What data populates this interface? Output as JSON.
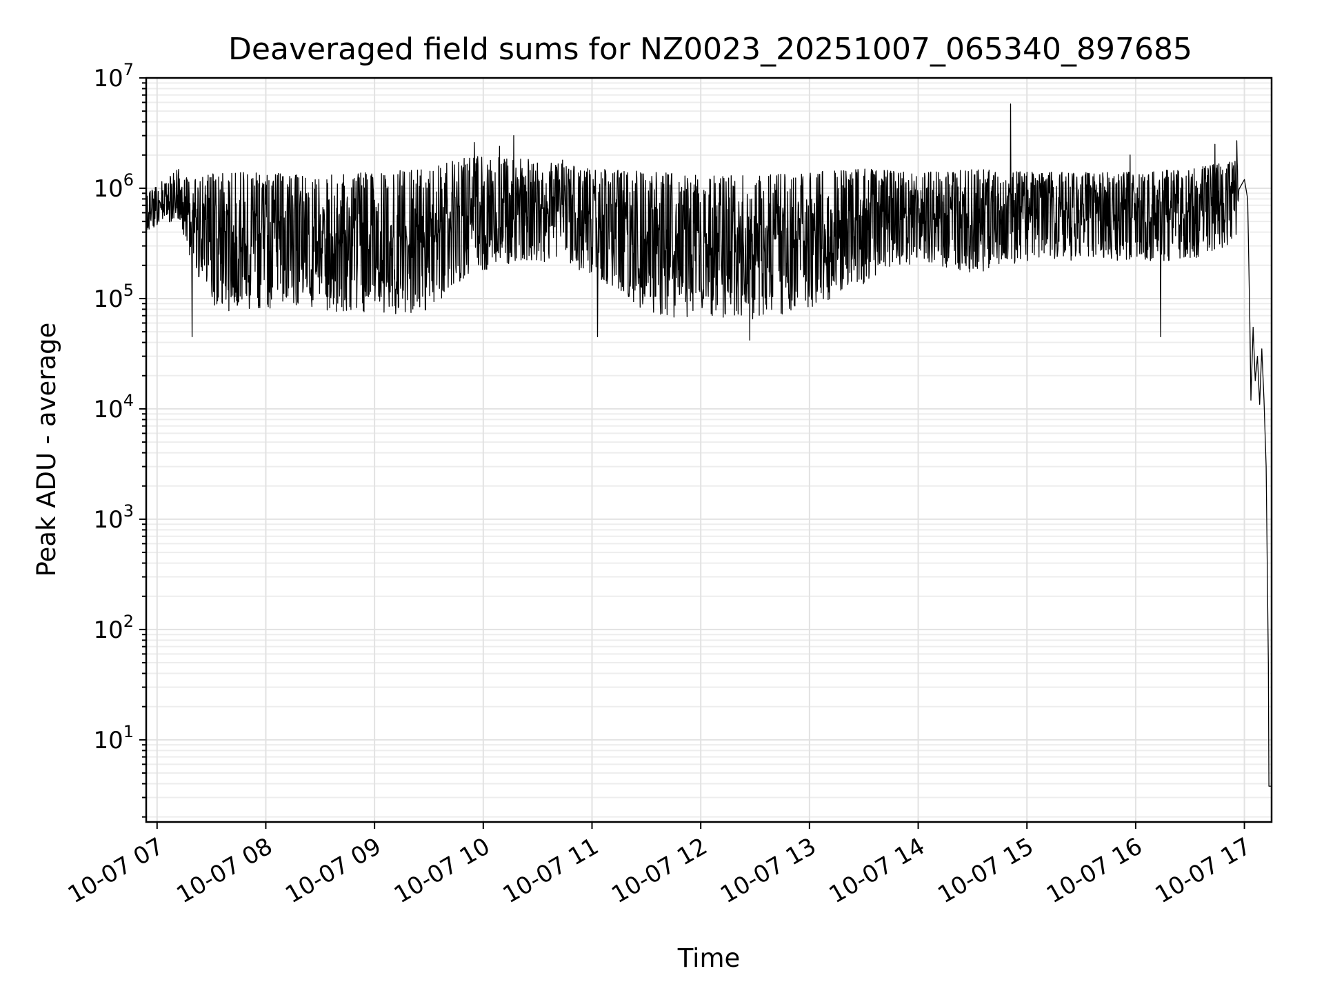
{
  "chart_data": {
    "type": "line",
    "title": "Deaveraged field sums for NZ0023_20251007_065340_897685",
    "xlabel": "Time",
    "ylabel": "Peak ADU - average",
    "yscale": "log",
    "ylim": [
      1.8,
      10000000
    ],
    "xlim_hours": [
      6.9,
      17.25
    ],
    "grid": true,
    "x_ticks": [
      {
        "hour": 7,
        "label": "10-07 07"
      },
      {
        "hour": 8,
        "label": "10-07 08"
      },
      {
        "hour": 9,
        "label": "10-07 09"
      },
      {
        "hour": 10,
        "label": "10-07 10"
      },
      {
        "hour": 11,
        "label": "10-07 11"
      },
      {
        "hour": 12,
        "label": "10-07 12"
      },
      {
        "hour": 13,
        "label": "10-07 13"
      },
      {
        "hour": 14,
        "label": "10-07 14"
      },
      {
        "hour": 15,
        "label": "10-07 15"
      },
      {
        "hour": 16,
        "label": "10-07 16"
      },
      {
        "hour": 17,
        "label": "10-07 17"
      }
    ],
    "y_ticks": [
      {
        "value": 10,
        "base": "10",
        "exp": "1"
      },
      {
        "value": 100,
        "base": "10",
        "exp": "2"
      },
      {
        "value": 1000,
        "base": "10",
        "exp": "3"
      },
      {
        "value": 10000,
        "base": "10",
        "exp": "4"
      },
      {
        "value": 100000,
        "base": "10",
        "exp": "5"
      },
      {
        "value": 1000000,
        "base": "10",
        "exp": "6"
      },
      {
        "value": 10000000,
        "base": "10",
        "exp": "7"
      }
    ],
    "series": [
      {
        "name": "Peak ADU - average",
        "color": "#000000",
        "envelope": [
          {
            "t": 6.9,
            "lo": 400000,
            "hi": 900000
          },
          {
            "t": 7.2,
            "lo": 500000,
            "hi": 1500000
          },
          {
            "t": 7.35,
            "lo": 150000,
            "hi": 1200000
          },
          {
            "t": 7.55,
            "lo": 65000,
            "hi": 1400000
          },
          {
            "t": 8.0,
            "lo": 70000,
            "hi": 1400000
          },
          {
            "t": 8.5,
            "lo": 65000,
            "hi": 1300000
          },
          {
            "t": 9.0,
            "lo": 60000,
            "hi": 1400000
          },
          {
            "t": 9.5,
            "lo": 65000,
            "hi": 1500000
          },
          {
            "t": 9.9,
            "lo": 150000,
            "hi": 2000000
          },
          {
            "t": 10.5,
            "lo": 200000,
            "hi": 1800000
          },
          {
            "t": 11.0,
            "lo": 150000,
            "hi": 1500000
          },
          {
            "t": 11.6,
            "lo": 55000,
            "hi": 1400000
          },
          {
            "t": 12.0,
            "lo": 60000,
            "hi": 1300000
          },
          {
            "t": 12.5,
            "lo": 55000,
            "hi": 1300000
          },
          {
            "t": 13.0,
            "lo": 70000,
            "hi": 1400000
          },
          {
            "t": 13.5,
            "lo": 120000,
            "hi": 1500000
          },
          {
            "t": 14.0,
            "lo": 200000,
            "hi": 1400000
          },
          {
            "t": 14.5,
            "lo": 150000,
            "hi": 1500000
          },
          {
            "t": 15.0,
            "lo": 200000,
            "hi": 1400000
          },
          {
            "t": 15.5,
            "lo": 200000,
            "hi": 1400000
          },
          {
            "t": 16.0,
            "lo": 200000,
            "hi": 1400000
          },
          {
            "t": 16.5,
            "lo": 200000,
            "hi": 1500000
          },
          {
            "t": 16.95,
            "lo": 300000,
            "hi": 1800000
          }
        ],
        "spikes": [
          {
            "t": 7.32,
            "v": 45000
          },
          {
            "t": 9.92,
            "v": 2600000
          },
          {
            "t": 10.28,
            "v": 3000000
          },
          {
            "t": 10.15,
            "v": 2400000
          },
          {
            "t": 10.73,
            "v": 1800000
          },
          {
            "t": 11.05,
            "v": 45000
          },
          {
            "t": 12.45,
            "v": 42000
          },
          {
            "t": 14.85,
            "v": 5800000
          },
          {
            "t": 15.95,
            "v": 2000000
          },
          {
            "t": 16.23,
            "v": 45000
          },
          {
            "t": 16.73,
            "v": 2500000
          },
          {
            "t": 16.93,
            "v": 2700000
          }
        ],
        "tail": [
          {
            "t": 17.0,
            "v": 1200000
          },
          {
            "t": 17.03,
            "v": 800000
          },
          {
            "t": 17.05,
            "v": 60000
          },
          {
            "t": 17.06,
            "v": 12000
          },
          {
            "t": 17.08,
            "v": 55000
          },
          {
            "t": 17.1,
            "v": 18000
          },
          {
            "t": 17.12,
            "v": 30000
          },
          {
            "t": 17.14,
            "v": 11000
          },
          {
            "t": 17.16,
            "v": 35000
          },
          {
            "t": 17.18,
            "v": 12000
          },
          {
            "t": 17.2,
            "v": 3000
          },
          {
            "t": 17.22,
            "v": 50
          },
          {
            "t": 17.225,
            "v": 3.8
          },
          {
            "t": 17.25,
            "v": 3.8
          }
        ]
      }
    ]
  }
}
